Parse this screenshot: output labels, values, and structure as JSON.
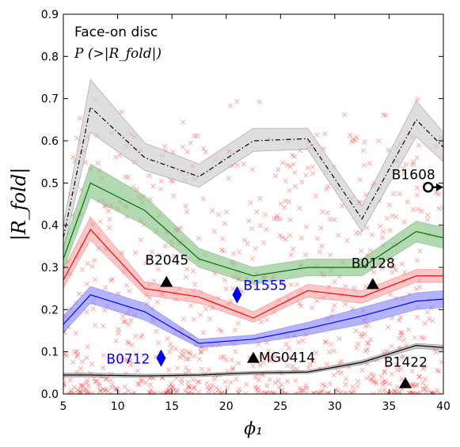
{
  "chart_data": {
    "type": "line",
    "annotation_title": "Face-on disc",
    "annotation_subtitle": "P (>|R_fold|)",
    "xlabel": "ϕ₁",
    "ylabel": "|R_fold|",
    "xlim": [
      5,
      40
    ],
    "ylim": [
      0,
      0.9
    ],
    "xticks": [
      "5",
      "10",
      "15",
      "20",
      "25",
      "30",
      "35",
      "40"
    ],
    "yticks": [
      "0.0",
      "0.1",
      "0.2",
      "0.3",
      "0.4",
      "0.5",
      "0.6",
      "0.7",
      "0.8",
      "0.9"
    ],
    "grid": false,
    "series": [
      {
        "color": "#000000",
        "band": "#cccccc",
        "dash": "6,3,1.5,3",
        "x": [
          5,
          7.5,
          12.5,
          17.5,
          22.5,
          27.5,
          32.5,
          37.5,
          40
        ],
        "y": [
          0.37,
          0.68,
          0.56,
          0.515,
          0.6,
          0.605,
          0.415,
          0.65,
          0.585
        ],
        "lo": [
          0.34,
          0.62,
          0.53,
          0.49,
          0.575,
          0.58,
          0.385,
          0.61,
          0.55
        ],
        "hi": [
          0.4,
          0.745,
          0.595,
          0.545,
          0.63,
          0.63,
          0.445,
          0.695,
          0.62
        ]
      },
      {
        "color": "#007000",
        "band": "#88c488",
        "dash": "",
        "x": [
          5,
          7.5,
          12.5,
          17.5,
          22.5,
          27.5,
          32.5,
          37.5,
          40
        ],
        "y": [
          0.32,
          0.5,
          0.435,
          0.32,
          0.28,
          0.3,
          0.3,
          0.385,
          0.37
        ],
        "lo": [
          0.295,
          0.465,
          0.4,
          0.3,
          0.26,
          0.28,
          0.28,
          0.36,
          0.345
        ],
        "hi": [
          0.35,
          0.545,
          0.47,
          0.345,
          0.3,
          0.32,
          0.32,
          0.41,
          0.395
        ]
      },
      {
        "color": "#ff0000",
        "band": "#f7a8a8",
        "dash": "",
        "x": [
          5,
          7.5,
          12.5,
          17.5,
          22.5,
          27.5,
          32.5,
          37.5,
          40
        ],
        "y": [
          0.27,
          0.39,
          0.25,
          0.23,
          0.18,
          0.245,
          0.23,
          0.28,
          0.28
        ],
        "lo": [
          0.25,
          0.365,
          0.235,
          0.215,
          0.17,
          0.23,
          0.215,
          0.265,
          0.265
        ],
        "hi": [
          0.295,
          0.42,
          0.265,
          0.245,
          0.195,
          0.26,
          0.245,
          0.295,
          0.295
        ]
      },
      {
        "color": "#0000ff",
        "band": "#8a8aff",
        "dash": "",
        "x": [
          5,
          7.5,
          12.5,
          17.5,
          22.5,
          27.5,
          32.5,
          37.5,
          40
        ],
        "y": [
          0.165,
          0.235,
          0.195,
          0.12,
          0.13,
          0.155,
          0.185,
          0.22,
          0.225
        ],
        "lo": [
          0.145,
          0.215,
          0.175,
          0.11,
          0.12,
          0.14,
          0.165,
          0.2,
          0.205
        ],
        "hi": [
          0.185,
          0.255,
          0.215,
          0.13,
          0.14,
          0.17,
          0.205,
          0.24,
          0.245
        ]
      },
      {
        "color": "#000000",
        "band": "#aaaaaa",
        "dash": "",
        "x": [
          5,
          7.5,
          12.5,
          17.5,
          22.5,
          27.5,
          32.5,
          37.5,
          40
        ],
        "y": [
          0.045,
          0.045,
          0.043,
          0.045,
          0.05,
          0.052,
          0.075,
          0.115,
          0.11
        ],
        "lo": [
          0.04,
          0.04,
          0.039,
          0.041,
          0.046,
          0.048,
          0.07,
          0.108,
          0.104
        ],
        "hi": [
          0.05,
          0.05,
          0.047,
          0.049,
          0.054,
          0.056,
          0.08,
          0.12,
          0.116
        ]
      }
    ],
    "lenses": [
      {
        "label": "B1608",
        "x": 38.6,
        "y": 0.49,
        "marker": "circle-arrow",
        "color": "#000000"
      },
      {
        "label": "B2045",
        "x": 14.5,
        "y": 0.265,
        "marker": "triangle",
        "color": "#000000"
      },
      {
        "label": "B0128",
        "x": 33.5,
        "y": 0.26,
        "marker": "triangle",
        "color": "#000000"
      },
      {
        "label": "B1555",
        "x": 21.0,
        "y": 0.235,
        "marker": "diamond",
        "color": "#0000ff"
      },
      {
        "label": "B0712",
        "x": 14.0,
        "y": 0.085,
        "marker": "diamond",
        "color": "#0000ff"
      },
      {
        "label": "MG0414",
        "x": 22.5,
        "y": 0.085,
        "marker": "triangle",
        "color": "#000000"
      },
      {
        "label": "B1422",
        "x": 36.5,
        "y": 0.025,
        "marker": "triangle",
        "color": "#000000"
      }
    ],
    "scatter": {
      "marker": "x",
      "color": "#ff0000",
      "alpha": 0.35,
      "count": 900
    }
  }
}
